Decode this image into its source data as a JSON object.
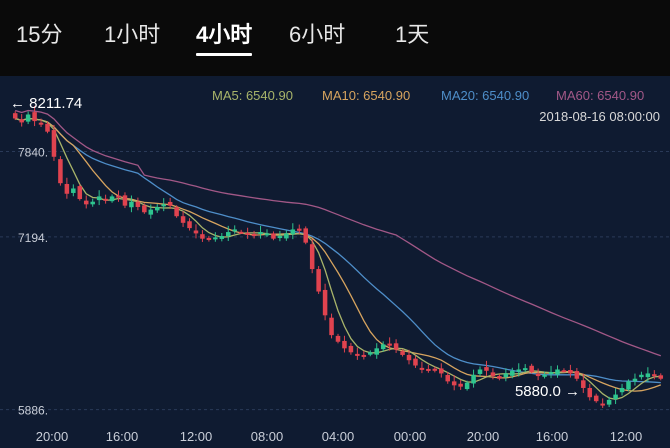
{
  "tabs": [
    {
      "label": "15分",
      "active": false
    },
    {
      "label": "1小时",
      "active": false
    },
    {
      "label": "4小时",
      "active": true
    },
    {
      "label": "6小时",
      "active": false
    },
    {
      "label": "1天",
      "active": false
    }
  ],
  "legend": {
    "ma5": "MA5: 6540.90",
    "ma10": "MA10: 6540.90",
    "ma20": "MA20: 6540.90",
    "ma60": "MA60: 6540.90",
    "timestamp": "2018-08-16 08:00:00"
  },
  "markers": {
    "high": "← 8211.74",
    "low": "5880.0 →"
  },
  "colors": {
    "background": "#0f1b31",
    "tab_bar": "#0a0a0a",
    "up": "#2ec58f",
    "down": "#e0434f",
    "ma5": "#a8b46a",
    "ma10": "#d7a45f",
    "ma20": "#4e8ec9",
    "ma60": "#a25887"
  },
  "chart_data": {
    "type": "candlestick",
    "y_axis_labels": [
      "7840.",
      "7194.",
      "5886."
    ],
    "y_axis_values": [
      7840,
      7194,
      5886
    ],
    "x_axis_labels": [
      "20:00",
      "16:00",
      "12:00",
      "08:00",
      "04:00",
      "00:00",
      "20:00",
      "16:00",
      "12:00"
    ],
    "high": 8211.74,
    "low": 5880.0,
    "close_series": [
      8090,
      8060,
      8120,
      8070,
      8050,
      7990,
      7800,
      7600,
      7520,
      7560,
      7480,
      7440,
      7460,
      7500,
      7470,
      7500,
      7490,
      7430,
      7460,
      7420,
      7380,
      7400,
      7420,
      7440,
      7430,
      7350,
      7300,
      7260,
      7220,
      7180,
      7170,
      7190,
      7200,
      7230,
      7250,
      7230,
      7210,
      7200,
      7230,
      7220,
      7180,
      7200,
      7220,
      7250,
      7240,
      7150,
      6950,
      6780,
      6600,
      6450,
      6400,
      6350,
      6320,
      6300,
      6290,
      6320,
      6350,
      6380,
      6370,
      6340,
      6300,
      6260,
      6220,
      6200,
      6190,
      6180,
      6160,
      6100,
      6070,
      6060,
      6090,
      6150,
      6190,
      6180,
      6140,
      6120,
      6160,
      6180,
      6190,
      6200,
      6170,
      6140,
      6150,
      6170,
      6190,
      6180,
      6160,
      6120,
      6050,
      5980,
      5950,
      5930,
      5960,
      6000,
      6050,
      6100,
      6120,
      6150,
      6160,
      6140,
      6120
    ]
  }
}
